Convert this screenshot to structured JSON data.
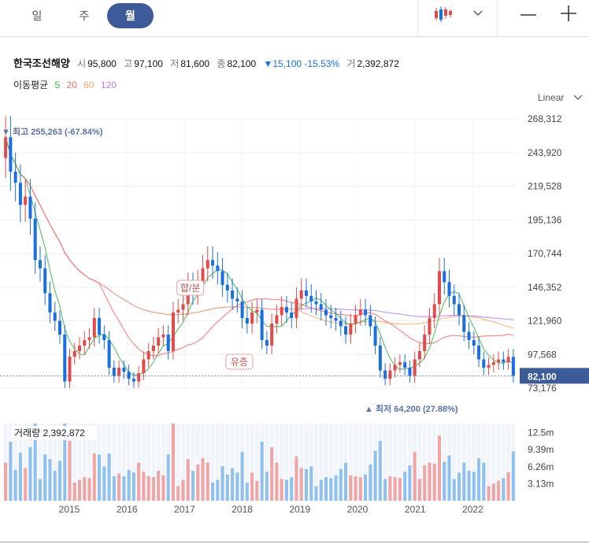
{
  "tabs": [
    {
      "label": "일"
    },
    {
      "label": "주"
    },
    {
      "label": "월"
    }
  ],
  "active_tab": "월",
  "toolbar": {
    "chart_type_icon": "candlestick-icon",
    "dropdown_icon": "chevron-down-icon",
    "zoom_out_icon": "minus-icon",
    "zoom_in_icon": "plus-icon"
  },
  "stock": {
    "name": "한국조선해양",
    "open_label": "시",
    "open": "95,800",
    "high_label": "고",
    "high": "97,100",
    "low_label": "저",
    "low": "81,600",
    "close_label": "종",
    "close": "82,100",
    "change": "▼15,100 -15.53%",
    "volume_label": "거",
    "volume": "2,392,872"
  },
  "ma": {
    "label": "이동평균",
    "periods": [
      "5",
      "20",
      "60",
      "120"
    ],
    "colors": [
      "#3cb44b",
      "#f26d6d",
      "#f6a96b",
      "#b57cf2"
    ]
  },
  "scale_mode": "Linear",
  "colors": {
    "up": "#e24b4b",
    "down": "#1a6fe0",
    "last_price_bg": "#3d5a99",
    "vol_up": "#f2a3a3",
    "vol_down": "#8fc0ef"
  },
  "chart_data": {
    "type": "candlestick",
    "x_ticks": [
      "2015",
      "2016",
      "2017",
      "2018",
      "2019",
      "2020",
      "2021",
      "2022"
    ],
    "y_ticks": [
      268312,
      243920,
      219528,
      195136,
      170744,
      146352,
      121960,
      97568,
      73176
    ],
    "y_tick_labels": [
      "268,312",
      "243,920",
      "219,528",
      "195,136",
      "170,744",
      "146,352",
      "121,960",
      "97,568",
      "73,176"
    ],
    "ylim": [
      62000,
      270000
    ],
    "last_price": 82100,
    "last_price_label": "82,100",
    "high_annotation": {
      "text": "▼ 최고 255,263 (-67.84%)",
      "value": 255263
    },
    "low_annotation": {
      "text": "▲ 최저 64,200 (27.88%)",
      "value": 64200
    },
    "event_markers": [
      {
        "text": "합/분",
        "year": 2017.1
      },
      {
        "text": "유증",
        "year": 2017.95
      }
    ],
    "closes": [
      255000,
      230000,
      222000,
      206000,
      212000,
      196000,
      166000,
      160000,
      142000,
      128000,
      122000,
      112000,
      78000,
      96000,
      100000,
      104000,
      108000,
      110000,
      124000,
      112000,
      108000,
      88000,
      82000,
      88000,
      85000,
      80000,
      78000,
      84000,
      94000,
      100000,
      104000,
      110000,
      112000,
      100000,
      128000,
      130000,
      134000,
      148000,
      142000,
      150000,
      160000,
      166000,
      162000,
      158000,
      148000,
      144000,
      138000,
      136000,
      124000,
      120000,
      128000,
      130000,
      108000,
      104000,
      120000,
      126000,
      132000,
      128000,
      124000,
      138000,
      144000,
      140000,
      136000,
      134000,
      130000,
      126000,
      124000,
      122000,
      118000,
      112000,
      120000,
      126000,
      130000,
      126000,
      118000,
      104000,
      86000,
      80000,
      86000,
      90000,
      92000,
      88000,
      82000,
      94000,
      100000,
      112000,
      124000,
      134000,
      158000,
      150000,
      140000,
      134000,
      126000,
      114000,
      108000,
      104000,
      94000,
      88000,
      90000,
      92000,
      94000,
      92000,
      95800,
      82100
    ],
    "volume_label": "거래량 2,392,872",
    "volume_ticks": [
      "12.5m",
      "9.39m",
      "6.26m",
      "3.13m"
    ],
    "volume_tick_values": [
      12.5,
      9.39,
      6.26,
      3.13
    ],
    "volume_max": 14.2
  }
}
